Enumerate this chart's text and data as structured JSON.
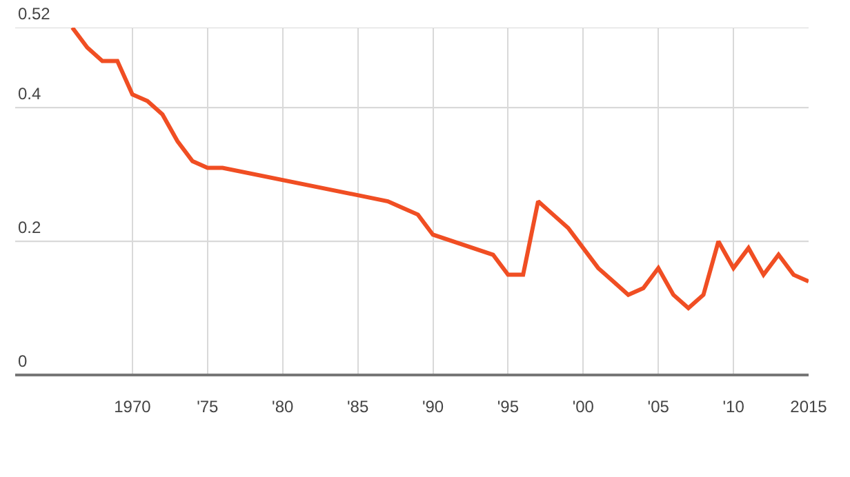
{
  "chart_data": {
    "type": "line",
    "x": [
      1966,
      1967,
      1968,
      1969,
      1970,
      1971,
      1972,
      1973,
      1974,
      1975,
      1976,
      1987,
      1988,
      1989,
      1990,
      1994,
      1995,
      1996,
      1997,
      1998,
      1999,
      2000,
      2001,
      2002,
      2003,
      2004,
      2005,
      2006,
      2007,
      2008,
      2009,
      2010,
      2011,
      2012,
      2013,
      2014,
      2015
    ],
    "series": [
      {
        "color": "#f04e23",
        "values": [
          0.52,
          0.49,
          0.47,
          0.47,
          0.42,
          0.41,
          0.39,
          0.35,
          0.32,
          0.31,
          0.31,
          0.26,
          0.25,
          0.24,
          0.21,
          0.18,
          0.15,
          0.15,
          0.26,
          0.24,
          0.22,
          0.19,
          0.16,
          0.14,
          0.12,
          0.13,
          0.16,
          0.12,
          0.1,
          0.12,
          0.2,
          0.16,
          0.19,
          0.15,
          0.18,
          0.15,
          0.14
        ]
      }
    ],
    "xlim": [
      1962.2,
      2015
    ],
    "ylim": [
      0,
      0.52
    ],
    "xticks": [
      1970,
      {
        "value": 1975,
        "label": "'75"
      },
      {
        "value": 1980,
        "label": "'80"
      },
      {
        "value": 1985,
        "label": "'85"
      },
      {
        "value": 1990,
        "label": "'90"
      },
      {
        "value": 1995,
        "label": "'95"
      },
      {
        "value": 2000,
        "label": "'00"
      },
      {
        "value": 2005,
        "label": "'05"
      },
      {
        "value": 2010,
        "label": "'10"
      },
      2015
    ],
    "yticks": [
      0,
      0.2,
      0.4,
      0.52
    ],
    "grid": true,
    "marker": "none",
    "line_style": "solid"
  }
}
